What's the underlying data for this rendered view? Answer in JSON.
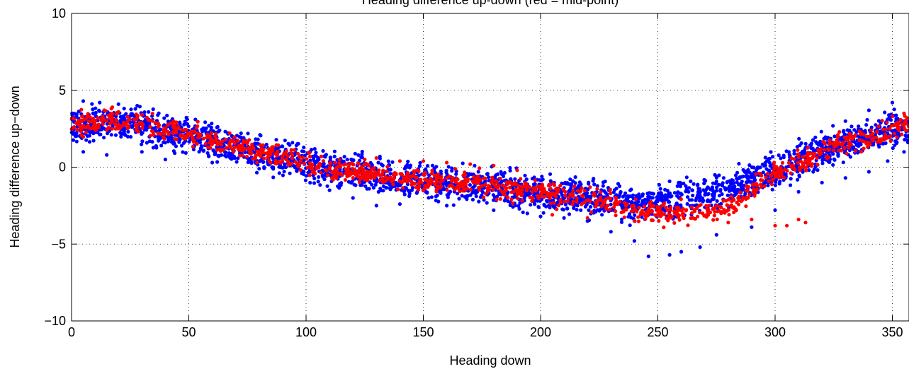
{
  "chart_data": {
    "type": "scatter",
    "title": "Heading difference up-down (red = mid-point)",
    "xlabel": "Heading down",
    "ylabel": "Heading difference up−down",
    "xlim": [
      0,
      360
    ],
    "ylim": [
      -10,
      10
    ],
    "xticks": [
      "0",
      "50",
      "100",
      "150",
      "200",
      "250",
      "300",
      "350"
    ],
    "xtick_values": [
      0,
      50,
      100,
      150,
      200,
      250,
      300,
      350
    ],
    "yticks": [
      "10",
      "5",
      "0",
      "−5",
      "−10"
    ],
    "ytick_values": [
      10,
      5,
      0,
      -5,
      -10
    ],
    "grid": true,
    "grid_style": "dotted",
    "marker": "filled-dot",
    "series": [
      {
        "color": "#0000ff",
        "band_center": [
          [
            0,
            2.7
          ],
          [
            10,
            2.8
          ],
          [
            20,
            2.8
          ],
          [
            30,
            2.7
          ],
          [
            40,
            2.3
          ],
          [
            50,
            2.1
          ],
          [
            60,
            1.6
          ],
          [
            70,
            1.3
          ],
          [
            80,
            0.9
          ],
          [
            90,
            0.5
          ],
          [
            100,
            0.2
          ],
          [
            110,
            -0.1
          ],
          [
            120,
            -0.3
          ],
          [
            130,
            -0.6
          ],
          [
            140,
            -0.8
          ],
          [
            150,
            -0.9
          ],
          [
            160,
            -1.1
          ],
          [
            170,
            -1.2
          ],
          [
            180,
            -1.3
          ],
          [
            190,
            -1.5
          ],
          [
            200,
            -1.7
          ],
          [
            210,
            -1.8
          ],
          [
            220,
            -2.0
          ],
          [
            230,
            -2.2
          ],
          [
            240,
            -2.4
          ],
          [
            250,
            -2.3
          ],
          [
            260,
            -2.0
          ],
          [
            270,
            -1.8
          ],
          [
            280,
            -1.3
          ],
          [
            290,
            -0.7
          ],
          [
            300,
            -0.2
          ],
          [
            310,
            0.5
          ],
          [
            320,
            1.1
          ],
          [
            330,
            1.6
          ],
          [
            340,
            2.0
          ],
          [
            350,
            2.4
          ],
          [
            358,
            2.6
          ]
        ],
        "outliers": [
          [
            5,
            4.3
          ],
          [
            12,
            4.2
          ],
          [
            20,
            4.1
          ],
          [
            28,
            4.0
          ],
          [
            5,
            1.0
          ],
          [
            15,
            0.8
          ],
          [
            30,
            1.0
          ],
          [
            40,
            0.5
          ],
          [
            60,
            0.3
          ],
          [
            80,
            -0.1
          ],
          [
            110,
            -1.5
          ],
          [
            120,
            -2.0
          ],
          [
            130,
            -2.5
          ],
          [
            140,
            -2.4
          ],
          [
            160,
            -2.5
          ],
          [
            180,
            -2.8
          ],
          [
            200,
            -3.2
          ],
          [
            210,
            -3.3
          ],
          [
            220,
            -3.5
          ],
          [
            230,
            -4.2
          ],
          [
            240,
            -4.8
          ],
          [
            246,
            -5.8
          ],
          [
            255,
            -5.7
          ],
          [
            260,
            -5.5
          ],
          [
            268,
            -5.2
          ],
          [
            275,
            -4.4
          ],
          [
            290,
            -3.9
          ],
          [
            300,
            -2.8
          ],
          [
            310,
            -1.6
          ],
          [
            320,
            -1.0
          ],
          [
            330,
            -0.7
          ],
          [
            340,
            -0.3
          ],
          [
            348,
            0.4
          ],
          [
            355,
            1.0
          ],
          [
            358,
            3.8
          ],
          [
            350,
            4.2
          ],
          [
            340,
            3.7
          ],
          [
            330,
            3.0
          ]
        ]
      },
      {
        "color": "#ff0000",
        "band_center": [
          [
            0,
            2.7
          ],
          [
            10,
            3.0
          ],
          [
            20,
            3.0
          ],
          [
            30,
            2.8
          ],
          [
            40,
            2.4
          ],
          [
            50,
            2.1
          ],
          [
            60,
            1.7
          ],
          [
            70,
            1.4
          ],
          [
            80,
            1.0
          ],
          [
            90,
            0.6
          ],
          [
            100,
            0.3
          ],
          [
            110,
            -0.1
          ],
          [
            120,
            -0.3
          ],
          [
            130,
            -0.5
          ],
          [
            140,
            -0.7
          ],
          [
            150,
            -0.8
          ],
          [
            160,
            -0.9
          ],
          [
            170,
            -1.0
          ],
          [
            180,
            -1.2
          ],
          [
            190,
            -1.5
          ],
          [
            200,
            -1.7
          ],
          [
            210,
            -1.8
          ],
          [
            220,
            -2.0
          ],
          [
            230,
            -2.3
          ],
          [
            240,
            -2.7
          ],
          [
            250,
            -2.9
          ],
          [
            260,
            -3.0
          ],
          [
            270,
            -2.9
          ],
          [
            280,
            -2.5
          ],
          [
            285,
            -2.2
          ],
          [
            290,
            -1.4
          ],
          [
            300,
            -0.5
          ],
          [
            310,
            0.3
          ],
          [
            320,
            1.0
          ],
          [
            330,
            1.5
          ],
          [
            340,
            1.9
          ],
          [
            350,
            2.4
          ],
          [
            358,
            2.8
          ]
        ],
        "outliers": [
          [
            20,
            3.6
          ],
          [
            30,
            3.4
          ],
          [
            120,
            0.2
          ],
          [
            125,
            0.5
          ],
          [
            130,
            0.6
          ],
          [
            140,
            0.4
          ],
          [
            150,
            0.4
          ],
          [
            160,
            0.3
          ],
          [
            170,
            0.2
          ],
          [
            180,
            0.1
          ],
          [
            190,
            -0.2
          ],
          [
            205,
            -3.1
          ],
          [
            220,
            -3.3
          ],
          [
            240,
            -3.5
          ],
          [
            255,
            -3.3
          ],
          [
            265,
            -3.3
          ],
          [
            280,
            -3.6
          ],
          [
            290,
            -3.4
          ],
          [
            300,
            -3.8
          ],
          [
            305,
            -3.8
          ],
          [
            310,
            -3.4
          ],
          [
            313,
            -3.6
          ],
          [
            350,
            3.3
          ],
          [
            355,
            3.5
          ]
        ]
      }
    ]
  }
}
